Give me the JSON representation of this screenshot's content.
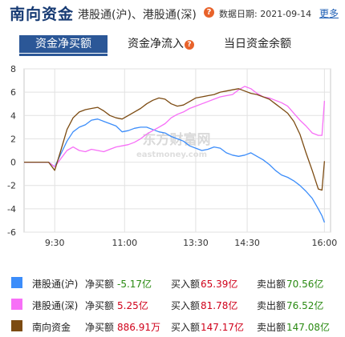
{
  "header": {
    "title": "南向资金",
    "subtitle": "港股通(沪)、港股通(深)",
    "help_glyph": "?",
    "date_label": "数据日期: 2021-09-14",
    "more_label": "更多"
  },
  "tabs": [
    {
      "label": "资金净买额",
      "active": true
    },
    {
      "label": "资金净流入",
      "active": false,
      "help_glyph": "?"
    },
    {
      "label": "当日资金余额",
      "active": false
    }
  ],
  "watermark": {
    "text_cn": "东方财富网",
    "text_en": "eastmoney.com"
  },
  "chart_data": {
    "type": "line",
    "ylim": [
      -6,
      8
    ],
    "yticks": [
      -6,
      -4,
      -2,
      0,
      2,
      4,
      6,
      8
    ],
    "xlim": [
      0,
      250
    ],
    "xticks": [
      {
        "label": "9:30",
        "x": 25
      },
      {
        "label": "11:00",
        "x": 82
      },
      {
        "label": "13:30",
        "x": 140
      },
      {
        "label": "14:30",
        "x": 182
      },
      {
        "label": "16:00",
        "x": 245
      }
    ],
    "grid": true,
    "series": [
      {
        "name": "港股通(沪)",
        "color": "#3c8dfa",
        "x": [
          0,
          20,
          25,
          30,
          35,
          40,
          45,
          50,
          55,
          60,
          65,
          70,
          75,
          80,
          85,
          90,
          95,
          100,
          105,
          110,
          115,
          120,
          125,
          130,
          135,
          140,
          145,
          150,
          155,
          160,
          165,
          170,
          175,
          180,
          185,
          190,
          195,
          200,
          205,
          210,
          215,
          220,
          225,
          230,
          235,
          240,
          243,
          245
        ],
        "y": [
          0,
          0,
          -0.4,
          0.7,
          1.8,
          2.6,
          3.0,
          3.2,
          3.6,
          3.7,
          3.5,
          3.3,
          3.1,
          2.6,
          2.7,
          2.9,
          3.0,
          3.0,
          2.8,
          2.6,
          2.5,
          2.2,
          2.0,
          1.8,
          1.4,
          1.2,
          1.0,
          1.1,
          1.3,
          1.2,
          0.8,
          0.6,
          0.5,
          0.6,
          0.8,
          0.5,
          0.2,
          -0.2,
          -0.7,
          -1.1,
          -1.3,
          -1.6,
          -2.0,
          -2.5,
          -3.1,
          -4.0,
          -4.6,
          -5.17
        ]
      },
      {
        "name": "港股通(深)",
        "color": "#f76ff7",
        "x": [
          0,
          20,
          25,
          30,
          35,
          40,
          45,
          50,
          55,
          60,
          65,
          70,
          75,
          80,
          85,
          90,
          95,
          100,
          105,
          110,
          115,
          120,
          125,
          130,
          135,
          140,
          145,
          150,
          155,
          160,
          165,
          170,
          175,
          180,
          185,
          190,
          195,
          200,
          205,
          210,
          215,
          220,
          225,
          230,
          235,
          240,
          243,
          245
        ],
        "y": [
          0,
          0,
          -0.4,
          0.3,
          1.0,
          1.3,
          1.0,
          0.9,
          1.1,
          1.0,
          0.9,
          1.1,
          1.3,
          1.4,
          1.5,
          1.7,
          2.0,
          2.4,
          2.7,
          3.0,
          3.3,
          3.8,
          4.1,
          4.3,
          4.6,
          4.8,
          5.0,
          5.2,
          5.4,
          5.6,
          5.7,
          5.8,
          6.2,
          6.5,
          6.3,
          5.9,
          5.6,
          5.5,
          5.3,
          5.1,
          4.8,
          4.2,
          3.6,
          3.1,
          2.5,
          2.3,
          2.3,
          5.25
        ]
      },
      {
        "name": "南向资金",
        "color": "#7c4b12",
        "x": [
          0,
          20,
          25,
          30,
          35,
          40,
          45,
          50,
          55,
          60,
          65,
          70,
          75,
          80,
          85,
          90,
          95,
          100,
          105,
          110,
          115,
          120,
          125,
          130,
          135,
          140,
          145,
          150,
          155,
          160,
          165,
          170,
          175,
          180,
          185,
          190,
          195,
          200,
          205,
          210,
          215,
          220,
          225,
          230,
          235,
          240,
          243,
          245
        ],
        "y": [
          0,
          0,
          -0.7,
          1.0,
          2.8,
          3.8,
          4.3,
          4.5,
          4.6,
          4.7,
          4.4,
          4.0,
          3.8,
          3.7,
          4.0,
          4.3,
          4.6,
          5.0,
          5.3,
          5.5,
          5.4,
          5.0,
          4.8,
          4.9,
          5.2,
          5.5,
          5.6,
          5.7,
          5.8,
          6.0,
          6.1,
          6.2,
          6.3,
          6.1,
          5.9,
          5.8,
          5.6,
          5.4,
          5.0,
          4.6,
          4.2,
          3.5,
          2.4,
          0.8,
          -0.7,
          -2.3,
          -2.4,
          0.09
        ]
      }
    ]
  },
  "legend": [
    {
      "name": "港股通(沪)",
      "color": "#3c8dfa",
      "net_label": "净买额",
      "net_value": "-5.17亿",
      "net_sign": "neg",
      "buy_label": "买入额",
      "buy_value": "65.39亿",
      "sell_label": "卖出额",
      "sell_value": "70.56亿"
    },
    {
      "name": "港股通(深)",
      "color": "#f76ff7",
      "net_label": "净买额",
      "net_value": "5.25亿",
      "net_sign": "pos",
      "buy_label": "买入额",
      "buy_value": "81.78亿",
      "sell_label": "卖出额",
      "sell_value": "76.52亿"
    },
    {
      "name": "南向资金",
      "color": "#7c4b12",
      "net_label": "净买额",
      "net_value": "886.91万",
      "net_sign": "pos",
      "buy_label": "买入额",
      "buy_value": "147.17亿",
      "sell_label": "卖出额",
      "sell_value": "147.08亿"
    }
  ]
}
